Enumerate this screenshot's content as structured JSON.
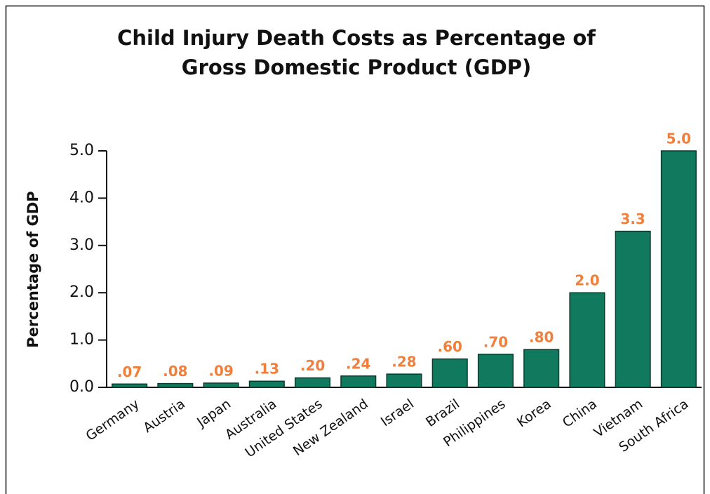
{
  "chart_data": {
    "type": "bar",
    "title": [
      "Child Injury Death Costs as Percentage of",
      "Gross Domestic Product (GDP)"
    ],
    "y_label": "Percentage of GDP",
    "categories": [
      "Germany",
      "Austria",
      "Japan",
      "Australia",
      "United States",
      "New Zealand",
      "Israel",
      "Brazil",
      "Philippines",
      "Korea",
      "China",
      "Vietnam",
      "South Africa"
    ],
    "values": [
      0.07,
      0.08,
      0.09,
      0.13,
      0.2,
      0.24,
      0.28,
      0.6,
      0.7,
      0.8,
      2.0,
      3.3,
      5.0
    ],
    "value_labels": [
      ".07",
      ".08",
      ".09",
      ".13",
      ".20",
      ".24",
      ".28",
      ".60",
      ".70",
      ".80",
      "2.0",
      "3.3",
      "5.0"
    ],
    "color": "#117a5e",
    "ylim": [
      0,
      5
    ],
    "yticks": [
      {
        "value": 0,
        "label": "0.0"
      },
      {
        "value": 1,
        "label": "1.0"
      },
      {
        "value": 2,
        "label": "2.0"
      },
      {
        "value": 3,
        "label": "3.0"
      },
      {
        "value": 4,
        "label": "4.0"
      },
      {
        "value": 5,
        "label": "5.0"
      }
    ]
  }
}
